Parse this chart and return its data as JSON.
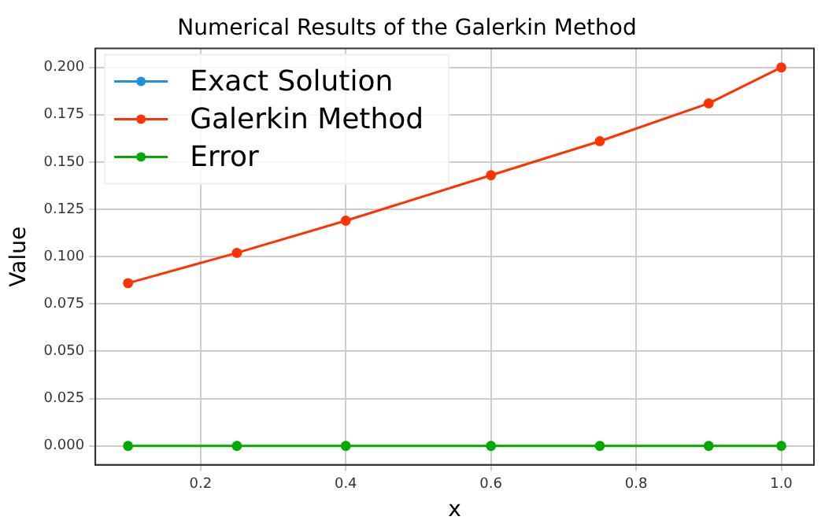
{
  "chart_data": {
    "type": "line",
    "title": "Numerical Results of the Galerkin Method",
    "xlabel": "x",
    "ylabel": "Value",
    "x": [
      0.1,
      0.25,
      0.4,
      0.6,
      0.75,
      0.9,
      1.0
    ],
    "series": [
      {
        "name": "Exact Solution",
        "color": "#1f8fdf",
        "values": [
          null,
          null,
          null,
          null,
          null,
          null,
          null
        ]
      },
      {
        "name": "Galerkin Method",
        "color": "#ff3300",
        "values": [
          0.086,
          0.102,
          0.119,
          0.143,
          0.161,
          0.181,
          0.2
        ]
      },
      {
        "name": "Error",
        "color": "#00aa00",
        "values": [
          0,
          0,
          0,
          0,
          0,
          0,
          0
        ]
      }
    ],
    "xlim": [
      0.055,
      1.045
    ],
    "xticks": [
      {
        "value": 0.2,
        "label": "0.2"
      },
      {
        "value": 0.4,
        "label": "0.4"
      },
      {
        "value": 0.6,
        "label": "0.6"
      },
      {
        "value": 0.8,
        "label": "0.8"
      },
      {
        "value": 1.0,
        "label": "1.0"
      }
    ],
    "ylim": [
      -0.01,
      0.21
    ],
    "yticks": [
      {
        "value": 0,
        "label": "0.000"
      },
      {
        "value": 0.025,
        "label": "0.025"
      },
      {
        "value": 0.05,
        "label": "0.050"
      },
      {
        "value": 0.075,
        "label": "0.075"
      },
      {
        "value": 0.1,
        "label": "0.100"
      },
      {
        "value": 0.125,
        "label": "0.125"
      },
      {
        "value": 0.15,
        "label": "0.150"
      },
      {
        "value": 0.175,
        "label": "0.175"
      },
      {
        "value": 0.2,
        "label": "0.200"
      }
    ],
    "grid": true,
    "legend": "top left",
    "marker": "circle",
    "line_style": "solid"
  }
}
